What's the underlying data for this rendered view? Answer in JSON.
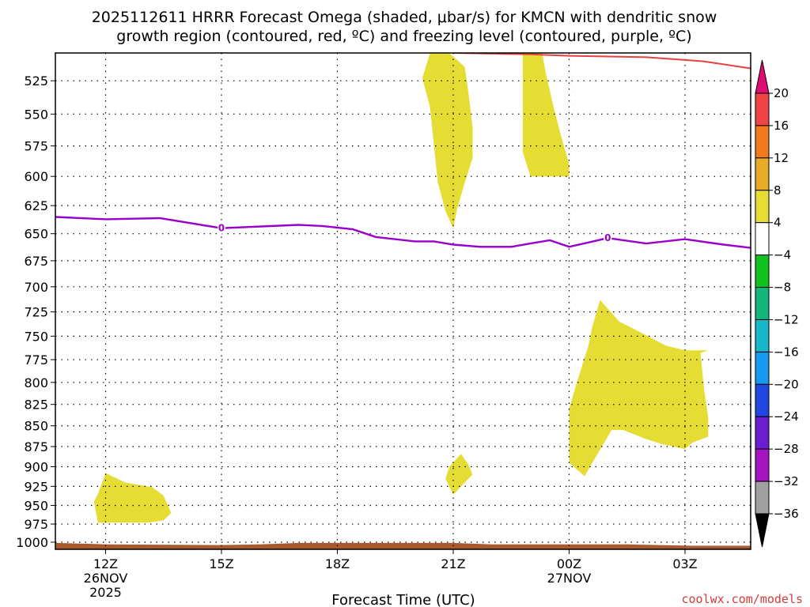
{
  "chart_data": {
    "type": "time-height contour",
    "title_line1": "2025112611 HRRR Forecast Omega (shaded, μbar/s) for KMCN with dendritic snow",
    "title_line2": "growth region (contoured, red, ºC) and freezing level (contoured, purple, ºC)",
    "xlabel": "Forecast Time (UTC)",
    "credit": "coolwx.com/models",
    "x_range_hours": [
      10.7,
      28.7
    ],
    "y_range_hPa": [
      505,
      1010
    ],
    "pressure_levels": [
      525,
      550,
      575,
      600,
      625,
      650,
      675,
      700,
      725,
      750,
      775,
      800,
      825,
      850,
      875,
      900,
      925,
      950,
      975,
      1000
    ],
    "x_ticks": [
      {
        "hour": 12,
        "label": "12Z",
        "sub1": "26NOV",
        "sub2": "2025"
      },
      {
        "hour": 15,
        "label": "15Z",
        "sub1": "",
        "sub2": ""
      },
      {
        "hour": 18,
        "label": "18Z",
        "sub1": "",
        "sub2": ""
      },
      {
        "hour": 21,
        "label": "21Z",
        "sub1": "",
        "sub2": ""
      },
      {
        "hour": 24,
        "label": "00Z",
        "sub1": "27NOV",
        "sub2": ""
      },
      {
        "hour": 27,
        "label": "03Z",
        "sub1": "",
        "sub2": ""
      }
    ],
    "freezing_level": {
      "label": "0",
      "color": "#9900cc",
      "points": [
        [
          10.7,
          635
        ],
        [
          12,
          637
        ],
        [
          13.4,
          636
        ],
        [
          15,
          645
        ],
        [
          17,
          642
        ],
        [
          17.6,
          643
        ],
        [
          18.4,
          646
        ],
        [
          19,
          653
        ],
        [
          20,
          657
        ],
        [
          20.5,
          657
        ],
        [
          21,
          660
        ],
        [
          21.7,
          662
        ],
        [
          22.5,
          662
        ],
        [
          23,
          659
        ],
        [
          23.5,
          656
        ],
        [
          24,
          662
        ],
        [
          24.5,
          658
        ],
        [
          25,
          654
        ],
        [
          26,
          659
        ],
        [
          27,
          655
        ],
        [
          28,
          660
        ],
        [
          28.7,
          663
        ]
      ],
      "label_points": [
        [
          15,
          645
        ],
        [
          25,
          654
        ]
      ]
    },
    "dgz_contour": {
      "color": "#e84040",
      "points": [
        [
          21,
          505
        ],
        [
          23,
          506
        ],
        [
          24,
          507
        ],
        [
          26,
          508
        ],
        [
          27.5,
          511
        ],
        [
          28.7,
          516
        ]
      ]
    },
    "omega_regions": [
      {
        "class": "4 to 8",
        "color": "#e5dd33",
        "points": [
          [
            20.4,
            505
          ],
          [
            20.9,
            505
          ],
          [
            21.3,
            515
          ],
          [
            21.4,
            535
          ],
          [
            21.5,
            560
          ],
          [
            21.5,
            585
          ],
          [
            21.3,
            605
          ],
          [
            21.1,
            628
          ],
          [
            21.0,
            645
          ],
          [
            20.8,
            630
          ],
          [
            20.6,
            605
          ],
          [
            20.5,
            575
          ],
          [
            20.4,
            545
          ],
          [
            20.2,
            523
          ]
        ]
      },
      {
        "class": "4 to 8",
        "color": "#e5dd33",
        "points": [
          [
            22.8,
            505
          ],
          [
            23.3,
            505
          ],
          [
            23.4,
            520
          ],
          [
            23.6,
            545
          ],
          [
            23.8,
            568
          ],
          [
            24.0,
            590
          ],
          [
            24.0,
            600
          ],
          [
            23.0,
            600
          ],
          [
            22.8,
            580
          ],
          [
            22.8,
            545
          ]
        ]
      },
      {
        "class": "4 to 8",
        "color": "#e5dd33",
        "points": [
          [
            24.8,
            713
          ],
          [
            25.3,
            735
          ],
          [
            25.8,
            745
          ],
          [
            26.5,
            760
          ],
          [
            27.0,
            765
          ],
          [
            27.6,
            765
          ],
          [
            27.4,
            768
          ],
          [
            27.5,
            810
          ],
          [
            27.6,
            840
          ],
          [
            27.6,
            863
          ],
          [
            27.2,
            870
          ],
          [
            27.0,
            878
          ],
          [
            26.4,
            872
          ],
          [
            26.0,
            866
          ],
          [
            25.4,
            855
          ],
          [
            25.1,
            855
          ],
          [
            24.6,
            895
          ],
          [
            24.4,
            912
          ],
          [
            24.0,
            895
          ],
          [
            24.0,
            887
          ],
          [
            24.0,
            845
          ],
          [
            24.0,
            830
          ],
          [
            24.2,
            800
          ],
          [
            24.5,
            760
          ],
          [
            24.6,
            740
          ]
        ]
      },
      {
        "class": "4 to 8",
        "color": "#e5dd33",
        "points": [
          [
            20.9,
            900
          ],
          [
            21.2,
            884
          ],
          [
            21.4,
            898
          ],
          [
            21.5,
            910
          ],
          [
            21.2,
            925
          ],
          [
            21.0,
            936
          ],
          [
            20.8,
            915
          ]
        ]
      },
      {
        "class": "4 to 8",
        "color": "#e5dd33",
        "points": [
          [
            11.8,
            935
          ],
          [
            12.0,
            908
          ],
          [
            12.5,
            920
          ],
          [
            13.2,
            926
          ],
          [
            13.5,
            937
          ],
          [
            13.7,
            960
          ],
          [
            13.5,
            970
          ],
          [
            13.1,
            973
          ],
          [
            12.4,
            973
          ],
          [
            11.8,
            973
          ],
          [
            11.7,
            945
          ]
        ]
      }
    ],
    "surface": {
      "color": "#a95a2f",
      "points": [
        [
          10.7,
          1001
        ],
        [
          12,
          1003
        ],
        [
          15,
          1004
        ],
        [
          16,
          1003
        ],
        [
          17,
          1001
        ],
        [
          20,
          1001
        ],
        [
          21,
          1001
        ],
        [
          22,
          1003
        ],
        [
          25.5,
          1003
        ],
        [
          27.2,
          1005
        ],
        [
          28.7,
          1005
        ]
      ]
    },
    "colorbar": {
      "labels": [
        "20",
        "16",
        "12",
        "8",
        "4",
        "−4",
        "−8",
        "−12",
        "−16",
        "−20",
        "−24",
        "−28",
        "−32",
        "−36"
      ],
      "colors": [
        "#e00c76",
        "#ef4444",
        "#f07a1f",
        "#e7ac27",
        "#e5dd33",
        "#ffffff",
        "#12c11e",
        "#16b57a",
        "#17b9c8",
        "#1999f0",
        "#2148e0",
        "#6b1ed0",
        "#a415c1",
        "#a0a0a0",
        "#000000"
      ]
    }
  }
}
